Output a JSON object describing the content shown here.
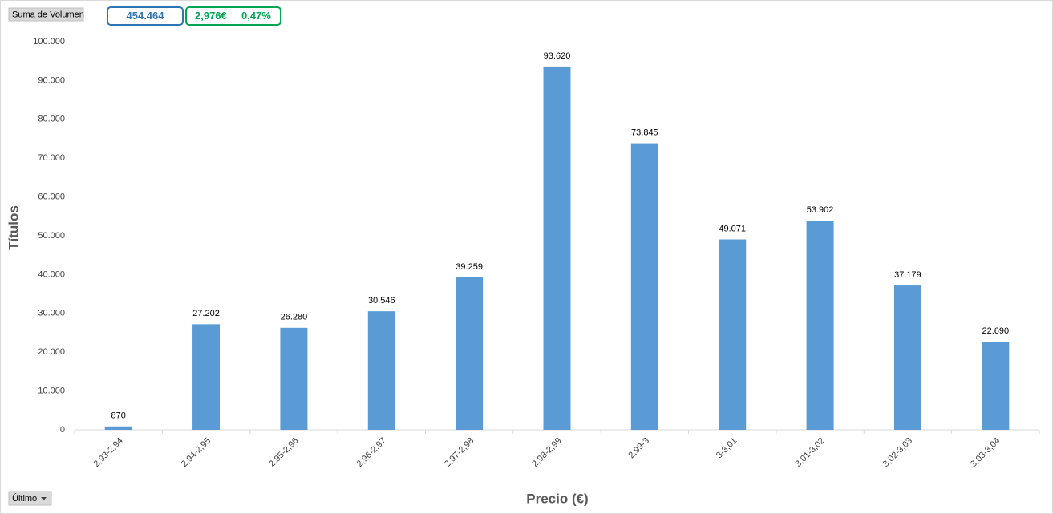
{
  "ui": {
    "field_button": "Suma de Volumen",
    "total": "454.464",
    "price": "2,976€",
    "change": "0,47%",
    "filter_button": "Último"
  },
  "chart_data": {
    "type": "bar",
    "x_label": "Precio (€)",
    "y_label": "Títulos",
    "categories": [
      "2,93-2,94",
      "2,94-2,95",
      "2,95-2,96",
      "2,96-2,97",
      "2,97-2,98",
      "2,98-2,99",
      "2,99-3",
      "3-3,01",
      "3,01-3,02",
      "3,02-3,03",
      "3,03-3,04"
    ],
    "values": [
      870,
      27202,
      26280,
      30546,
      39259,
      93620,
      73845,
      49071,
      53902,
      37179,
      22690
    ],
    "value_labels": [
      "870",
      "27.202",
      "26.280",
      "30.546",
      "39.259",
      "93.620",
      "73.845",
      "49.071",
      "53.902",
      "37.179",
      "22.690"
    ],
    "color": "#5b9bd5",
    "grid": false,
    "ylim": [
      0,
      100000
    ],
    "yticks": [
      0,
      {
        "value": 10000,
        "label": "10.000"
      },
      {
        "value": 20000,
        "label": "20.000"
      },
      {
        "value": 30000,
        "label": "30.000"
      },
      {
        "value": 40000,
        "label": "40.000"
      },
      {
        "value": 50000,
        "label": "50.000"
      },
      {
        "value": 60000,
        "label": "60.000"
      },
      {
        "value": 70000,
        "label": "70.000"
      },
      {
        "value": 80000,
        "label": "80.000"
      },
      {
        "value": 90000,
        "label": "90.000"
      },
      {
        "value": 100000,
        "label": "100.000"
      }
    ]
  }
}
